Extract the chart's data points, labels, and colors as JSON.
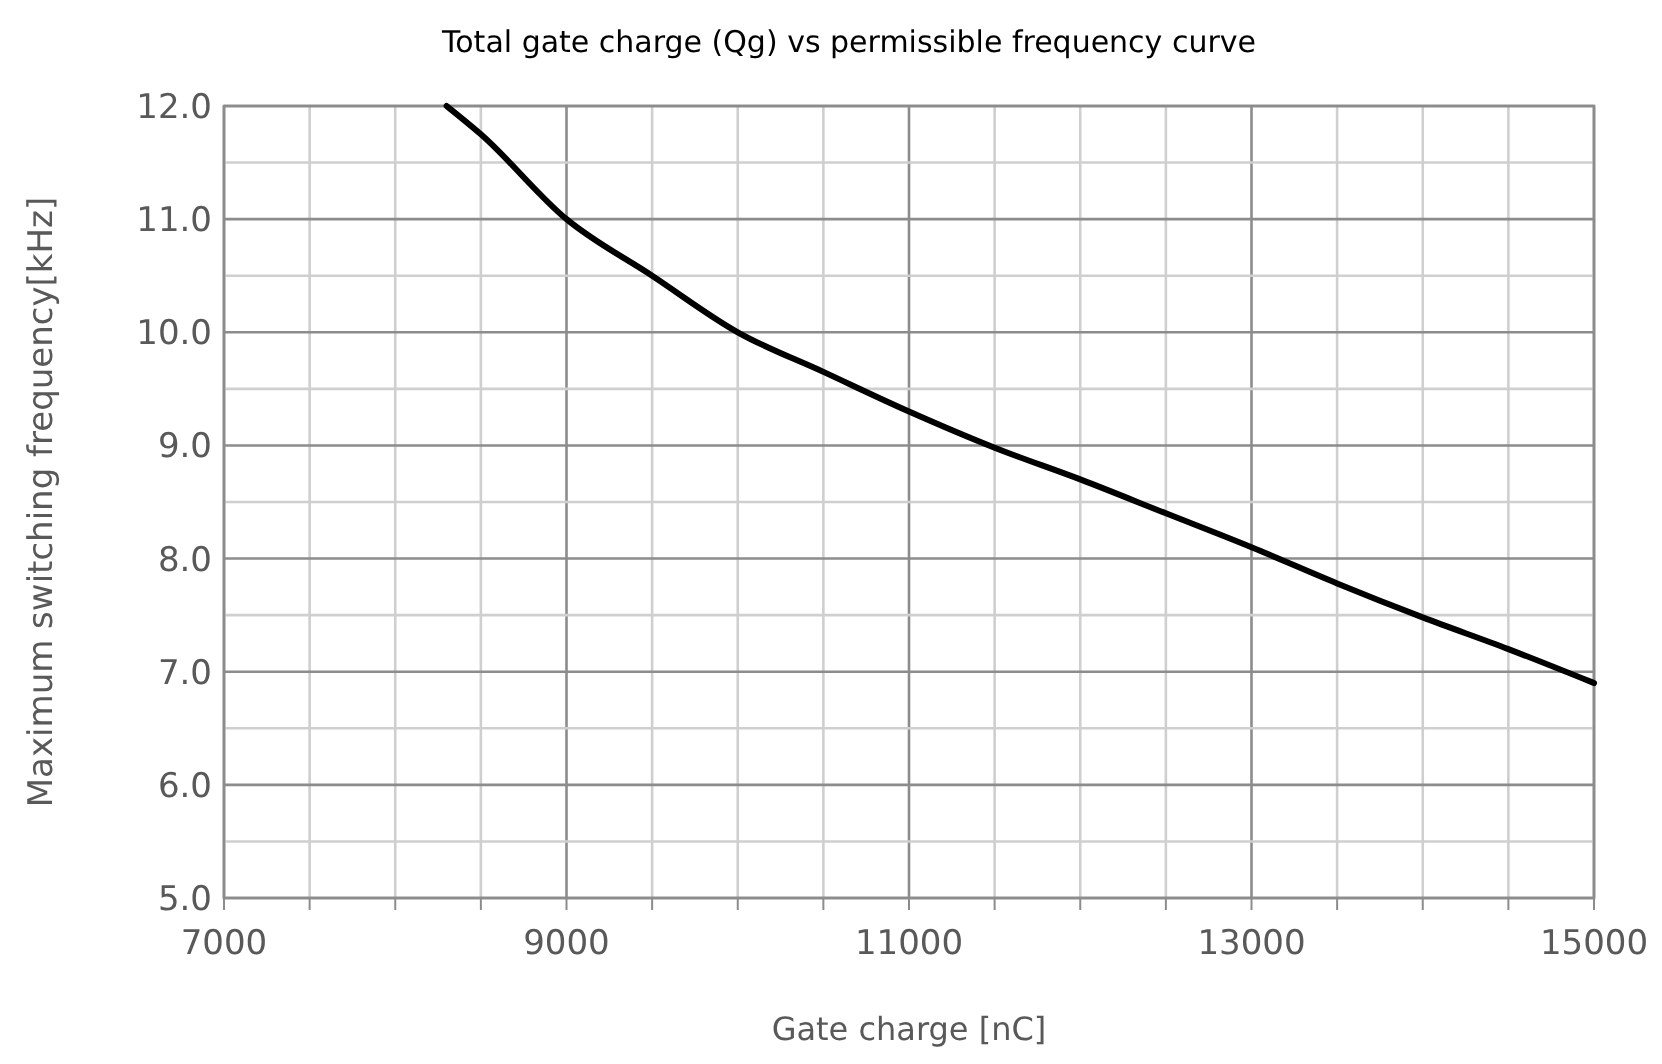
{
  "chart_data": {
    "type": "line",
    "title": "Total gate charge (Qg) vs permissible frequency curve",
    "xlabel": "Gate charge [nC]",
    "ylabel": "Maximum switching frequency[kHz]",
    "x": [
      8300,
      8500,
      9000,
      9500,
      10000,
      10500,
      11000,
      11500,
      12000,
      12500,
      13000,
      13500,
      14000,
      14500,
      15000
    ],
    "series": [
      {
        "color": "#000000",
        "values": [
          12.0,
          11.75,
          11.0,
          10.5,
          10.0,
          9.65,
          9.3,
          8.98,
          8.7,
          8.4,
          8.1,
          7.78,
          7.48,
          7.2,
          6.9
        ]
      }
    ],
    "xlim": [
      7000,
      15000
    ],
    "xticks": [
      7000,
      {
        "value": 7500,
        "label": null
      },
      {
        "value": 8000,
        "label": null
      },
      {
        "value": 8500,
        "label": null
      },
      9000,
      {
        "value": 9500,
        "label": null
      },
      {
        "value": 10000,
        "label": null
      },
      {
        "value": 10500,
        "label": null
      },
      11000,
      {
        "value": 11500,
        "label": null
      },
      {
        "value": 12000,
        "label": null
      },
      {
        "value": 12500,
        "label": null
      },
      13000,
      {
        "value": 13500,
        "label": null
      },
      {
        "value": 14000,
        "label": null
      },
      {
        "value": 14500,
        "label": null
      },
      15000
    ],
    "ylim": [
      5,
      12
    ],
    "yticks": [
      {
        "value": 5,
        "label": "5.0"
      },
      {
        "value": 5.5,
        "label": null
      },
      {
        "value": 6,
        "label": "6.0"
      },
      {
        "value": 6.5,
        "label": null
      },
      {
        "value": 7,
        "label": "7.0"
      },
      {
        "value": 7.5,
        "label": null
      },
      {
        "value": 8,
        "label": "8.0"
      },
      {
        "value": 8.5,
        "label": null
      },
      {
        "value": 9,
        "label": "9.0"
      },
      {
        "value": 9.5,
        "label": null
      },
      {
        "value": 10,
        "label": "10.0"
      },
      {
        "value": 10.5,
        "label": null
      },
      {
        "value": 11,
        "label": "11.0"
      },
      {
        "value": 11.5,
        "label": null
      },
      {
        "value": 12,
        "label": "12.0"
      }
    ],
    "grid": true,
    "line_style": "solid",
    "marker": "none"
  }
}
